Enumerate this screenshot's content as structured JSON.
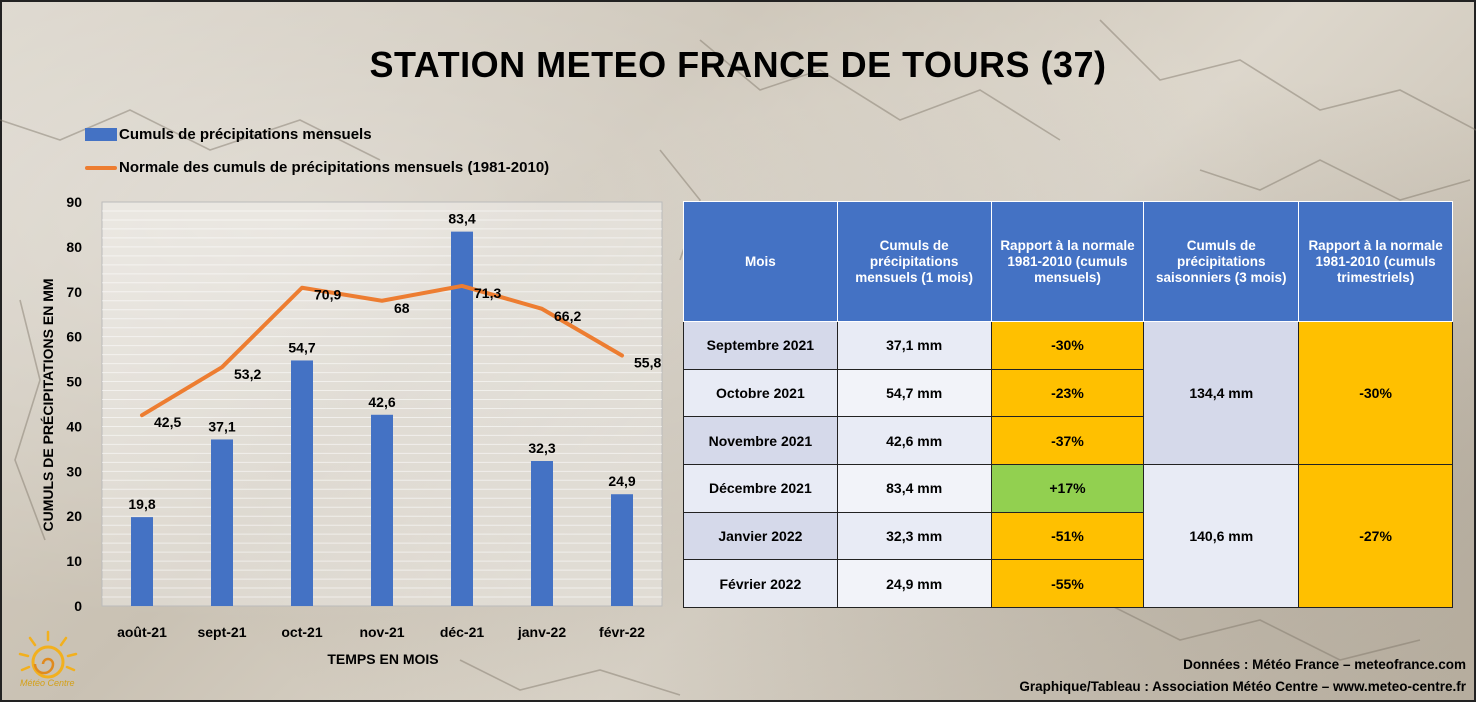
{
  "title": "STATION METEO FRANCE DE TOURS (37)",
  "legend": {
    "bars": "Cumuls de précipitations mensuels",
    "line": "Normale des cumuls de précipitations mensuels (1981-2010)"
  },
  "colors": {
    "bars": "#4472c4",
    "line": "#ed7d31",
    "header": "#4472c4",
    "deficit": "#ffc000",
    "surplus": "#92d050"
  },
  "chart_data": {
    "type": "bar",
    "categories": [
      "août-21",
      "sept-21",
      "oct-21",
      "nov-21",
      "déc-21",
      "janv-22",
      "févr-22"
    ],
    "series": [
      {
        "name": "Cumuls de précipitations mensuels",
        "type": "bar",
        "values": [
          19.8,
          37.1,
          54.7,
          42.6,
          83.4,
          32.3,
          24.9
        ],
        "labels": [
          "19,8",
          "37,1",
          "54,7",
          "42,6",
          "83,4",
          "32,3",
          "24,9"
        ]
      },
      {
        "name": "Normale des cumuls de précipitations mensuels (1981-2010)",
        "type": "line",
        "values": [
          42.5,
          53.2,
          70.9,
          68,
          71.3,
          66.2,
          55.8
        ],
        "labels": [
          "42,5",
          "53,2",
          "70,9",
          "68",
          "71,3",
          "66,2",
          "55,8"
        ]
      }
    ],
    "ylabel": "CUMULS DE PRÉCIPITATIONS EN MM",
    "xlabel": "TEMPS EN MOIS",
    "ylim": [
      0,
      90
    ],
    "yticks": [
      0,
      10,
      20,
      30,
      40,
      50,
      60,
      70,
      80,
      90
    ],
    "grid": true,
    "legend_position": "top-left"
  },
  "table": {
    "headers": [
      "Mois",
      "Cumuls de précipitations mensuels (1 mois)",
      "Rapport à la normale 1981-2010 (cumuls mensuels)",
      "Cumuls de précipitations saisonniers (3 mois)",
      "Rapport à la normale 1981-2010 (cumuls trimestriels)"
    ],
    "rows": [
      {
        "mois": "Septembre 2021",
        "cumul": "37,1 mm",
        "rapport": "-30%"
      },
      {
        "mois": "Octobre 2021",
        "cumul": "54,7 mm",
        "rapport": "-23%"
      },
      {
        "mois": "Novembre 2021",
        "cumul": "42,6 mm",
        "rapport": "-37%"
      },
      {
        "mois": "Décembre 2021",
        "cumul": "83,4 mm",
        "rapport": "+17%"
      },
      {
        "mois": "Janvier 2022",
        "cumul": "32,3 mm",
        "rapport": "-51%"
      },
      {
        "mois": "Février 2022",
        "cumul": "24,9 mm",
        "rapport": "-55%"
      }
    ],
    "seasons": [
      {
        "cumul": "134,4 mm",
        "rapport": "-30%"
      },
      {
        "cumul": "140,6 mm",
        "rapport": "-27%"
      }
    ]
  },
  "footer": {
    "line1": "Données : Météo France – meteofrance.com",
    "line2": "Graphique/Tableau : Association Météo Centre – www.meteo-centre.fr"
  },
  "logo_text": "Météo Centre"
}
